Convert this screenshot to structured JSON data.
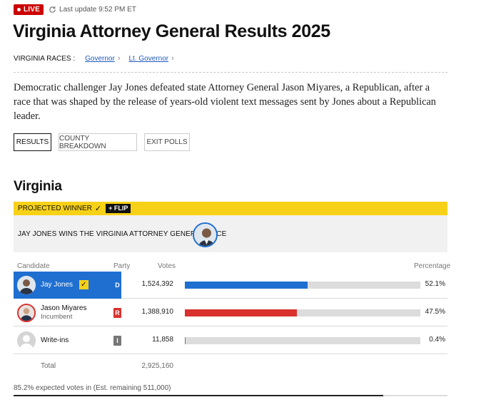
{
  "live": {
    "label": "LIVE",
    "updated": "Last update 9:52 PM ET",
    "color": "#cc0000"
  },
  "title": "Virginia Attorney General Results 2025",
  "races": {
    "label": "VIRGINIA RACES :",
    "links": [
      {
        "label": "Governor"
      },
      {
        "label": "Lt. Governor"
      }
    ]
  },
  "summary": "Democratic challenger Jay Jones defeated state Attorney General Jason Miyares, a Republican, after a race that was shaped by the release of years-old violent text messages sent by Jones about a Republican leader.",
  "tabs": [
    {
      "label": "RESULTS",
      "active": true
    },
    {
      "label": "COUNTY BREAKDOWN",
      "active": false
    },
    {
      "label": "EXIT POLLS",
      "active": false
    }
  ],
  "state": "Virginia",
  "winner": {
    "projected_label": "PROJECTED WINNER",
    "flip_label": "+ FLIP",
    "headline": "JAY JONES WINS THE VIRGINIA ATTORNEY GENERAL RACE",
    "bar_color": "#f7d117"
  },
  "table": {
    "headers": {
      "candidate": "Candidate",
      "party": "Party",
      "votes": "Votes",
      "percentage": "Percentage"
    },
    "rows": [
      {
        "name": "Jay Jones",
        "sub": "",
        "party": "D",
        "votes": "1,524,392",
        "pct": "52.1%",
        "share": 52.1,
        "color": "#1f6fd0",
        "winner": true
      },
      {
        "name": "Jason Miyares",
        "sub": "Incumbent",
        "party": "R",
        "votes": "1,388,910",
        "pct": "47.5%",
        "share": 47.5,
        "color": "#d9312e",
        "winner": false
      },
      {
        "name": "Write-ins",
        "sub": "",
        "party": "I",
        "votes": "11,858",
        "pct": "0.4%",
        "share": 0.4,
        "color": "#777777",
        "winner": false
      }
    ],
    "total_label": "Total",
    "total_votes": "2,925,160"
  },
  "expected": {
    "text": "85.2% expected votes in (Est. remaining 511,000)",
    "share": 85.2
  }
}
